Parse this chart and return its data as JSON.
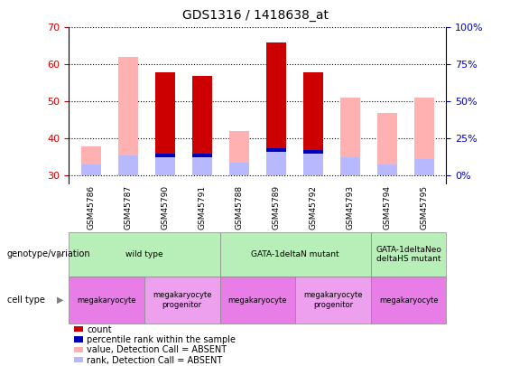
{
  "title": "GDS1316 / 1418638_at",
  "samples": [
    "GSM45786",
    "GSM45787",
    "GSM45790",
    "GSM45791",
    "GSM45788",
    "GSM45789",
    "GSM45792",
    "GSM45793",
    "GSM45794",
    "GSM45795"
  ],
  "pink_bar_tops": [
    38,
    62,
    58,
    57,
    42,
    66,
    58,
    51,
    47,
    51
  ],
  "pink_bar_bottoms": [
    30,
    30,
    30,
    30,
    30,
    30,
    30,
    30,
    30,
    30
  ],
  "rank_bar_tops": [
    33,
    35.5,
    35.5,
    35.5,
    33.5,
    37,
    36.5,
    35,
    33,
    34.5
  ],
  "rank_bar_bottoms": [
    30,
    30,
    30,
    30,
    30,
    30,
    30,
    30,
    30,
    30
  ],
  "dark_red_tops": [
    null,
    null,
    58,
    57,
    null,
    66,
    58,
    null,
    null,
    null
  ],
  "dark_red_bottoms": [
    null,
    null,
    35.5,
    35.5,
    null,
    37,
    36.5,
    null,
    null,
    null
  ],
  "blue_tops": [
    null,
    null,
    36.0,
    36.0,
    null,
    37.5,
    37.0,
    null,
    null,
    null
  ],
  "blue_bottoms": [
    null,
    null,
    35.0,
    35.0,
    null,
    36.5,
    36.0,
    null,
    null,
    null
  ],
  "ylim": [
    28,
    70
  ],
  "yticks": [
    30,
    40,
    50,
    60,
    70
  ],
  "yticks_right": [
    0,
    25,
    50,
    75,
    100
  ],
  "genotype_groups": [
    {
      "label": "wild type",
      "cols": [
        0,
        1,
        2,
        3
      ],
      "color": "#b8efb8"
    },
    {
      "label": "GATA-1deltaN mutant",
      "cols": [
        4,
        5,
        6,
        7
      ],
      "color": "#b8efb8"
    },
    {
      "label": "GATA-1deltaNeo\ndeltaHS mutant",
      "cols": [
        8,
        9
      ],
      "color": "#b8efb8"
    }
  ],
  "cell_groups": [
    {
      "label": "megakaryocyte",
      "cols": [
        0,
        1
      ],
      "color": "#e87de8"
    },
    {
      "label": "megakaryocyte\nprogenitor",
      "cols": [
        2,
        3
      ],
      "color": "#eda0ed"
    },
    {
      "label": "megakaryocyte",
      "cols": [
        4,
        5
      ],
      "color": "#e87de8"
    },
    {
      "label": "megakaryocyte\nprogenitor",
      "cols": [
        6,
        7
      ],
      "color": "#eda0ed"
    },
    {
      "label": "megakaryocyte",
      "cols": [
        8,
        9
      ],
      "color": "#e87de8"
    }
  ],
  "color_dark_red": "#cc0000",
  "color_pink": "#ffb0b0",
  "color_blue": "#0000bb",
  "color_light_blue": "#b8b8ff",
  "tick_color_left": "#cc0000",
  "tick_color_right": "#0000bb"
}
